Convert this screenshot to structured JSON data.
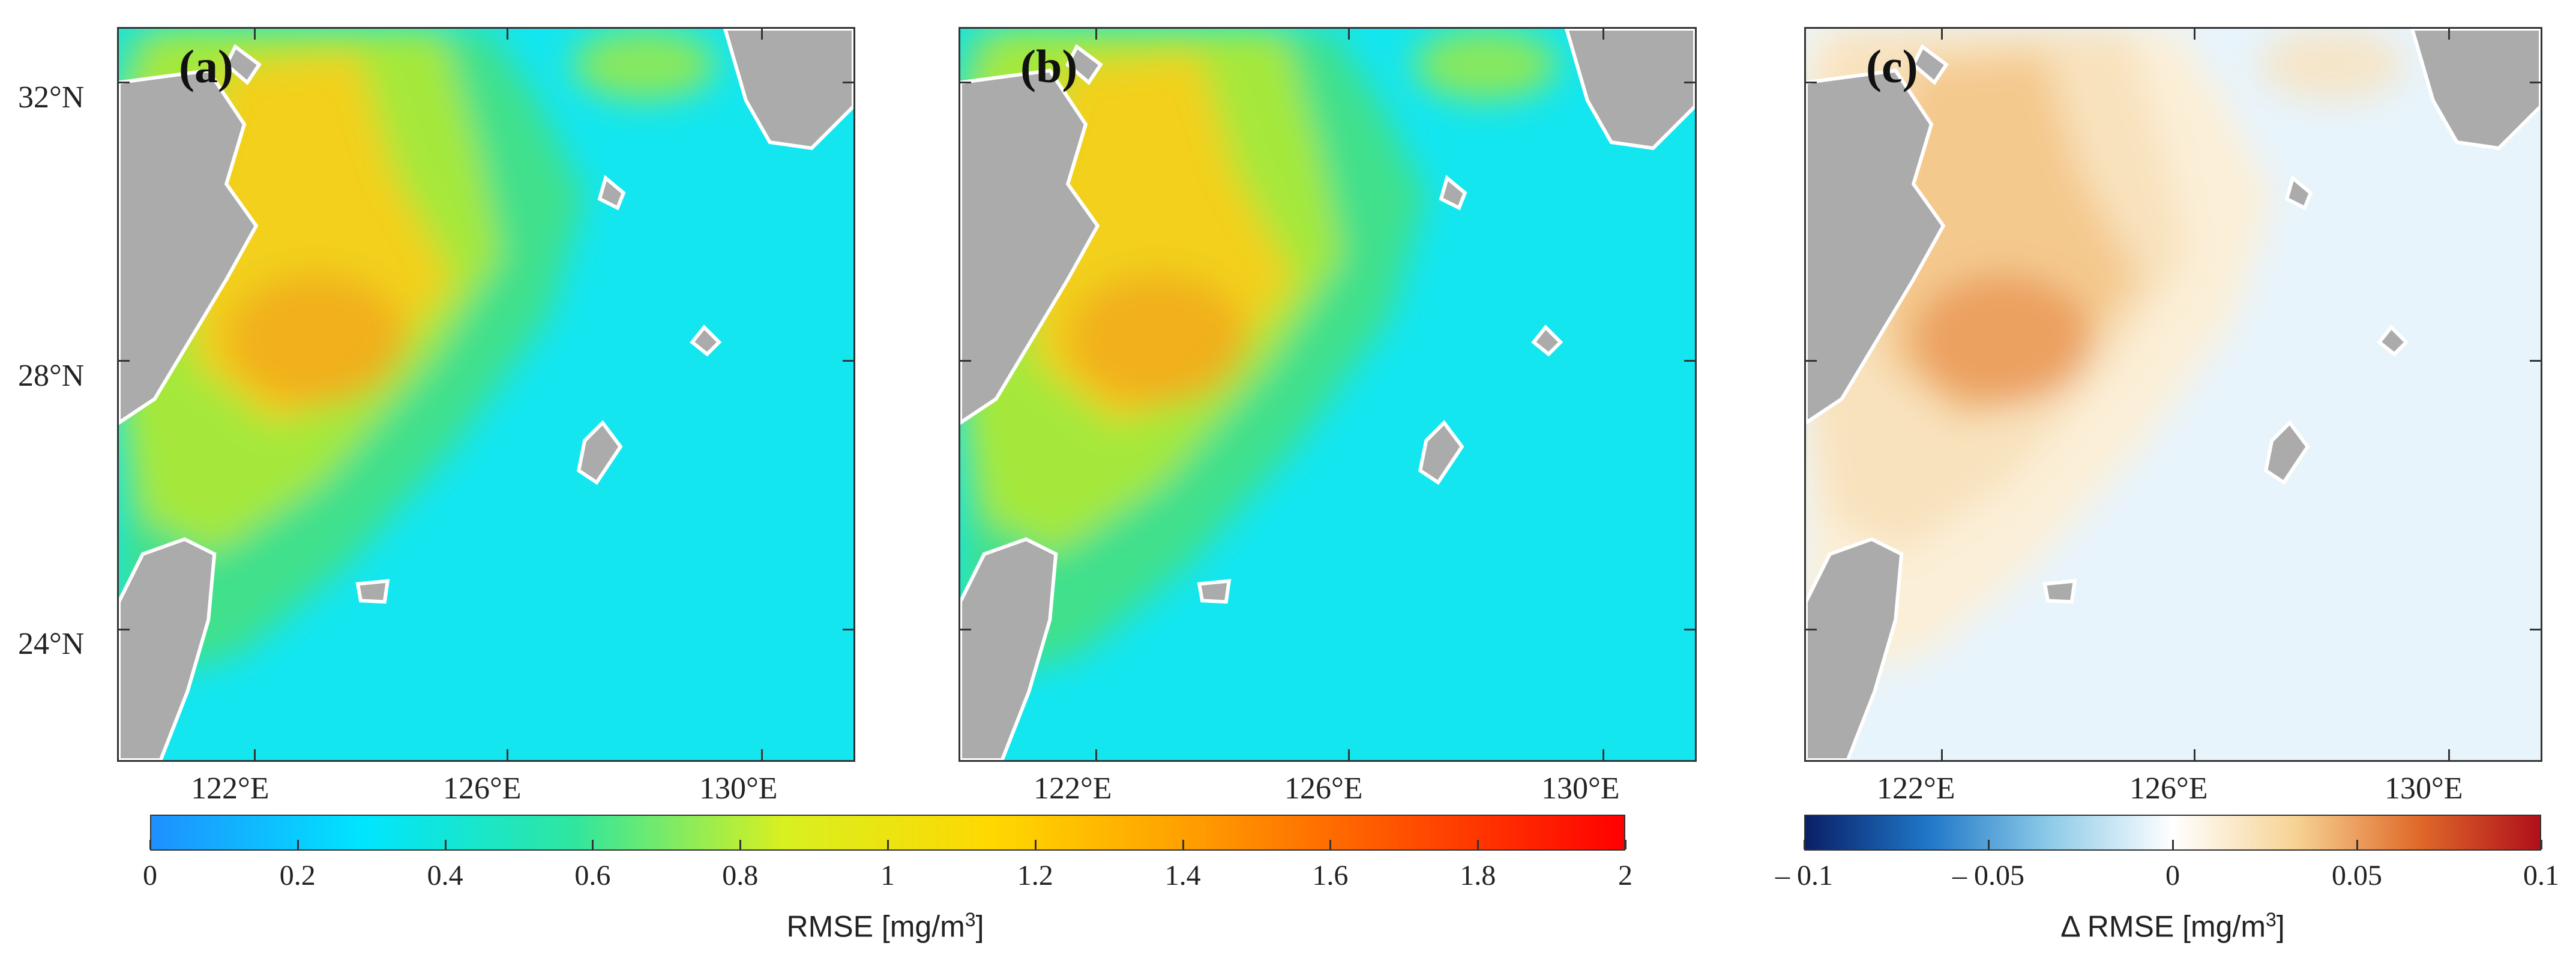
{
  "panels": [
    {
      "label": "(a)",
      "colors": {
        "land": "#ababab",
        "sea": "#14e6f0",
        "shelf_outer": "#3fe08c",
        "shelf_mid": "#a5e83a",
        "shelf_core": "#f2d01e",
        "hot": "#f08a1c"
      }
    },
    {
      "label": "(b)",
      "colors": {
        "land": "#ababab",
        "sea": "#14e6f0",
        "shelf_outer": "#3fe08c",
        "shelf_mid": "#a5e83a",
        "shelf_core": "#f2d01e",
        "hot": "#f08a1c"
      }
    },
    {
      "label": "(c)",
      "colors": {
        "land": "#ababab",
        "sea": "#e8f4fb",
        "shelf_outer": "#fbefd8",
        "shelf_mid": "#f8e2bd",
        "shelf_core": "#f4c98e",
        "hot": "#e0702b"
      }
    }
  ],
  "axes": {
    "lat_labels": [
      "32°N",
      "28°N",
      "24°N"
    ],
    "lon_labels": [
      "122°E",
      "126°E",
      "130°E"
    ]
  },
  "colorbar_rmse": {
    "title": "RMSE  [mg/m",
    "title_sup": "3",
    "title_end": "]",
    "ticks": [
      "0",
      "0.2",
      "0.4",
      "0.6",
      "0.8",
      "1",
      "1.2",
      "1.4",
      "1.6",
      "1.8",
      "2"
    ],
    "colors": [
      "#1e90ff",
      "#00e5ff",
      "#2ee6a0",
      "#d8f020",
      "#ffd800",
      "#ff9a00",
      "#ff4d00",
      "#ff0000"
    ]
  },
  "colorbar_delta": {
    "title": "Δ RMSE  [mg/m",
    "title_sup": "3",
    "title_end": "]",
    "ticks": [
      "– 0.1",
      "– 0.05",
      "0",
      "0.05",
      "0.1"
    ],
    "colors": [
      "#0a1f66",
      "#1f77c8",
      "#8ecbe8",
      "#ffffff",
      "#f6d394",
      "#e06a2a",
      "#b0101a"
    ]
  }
}
